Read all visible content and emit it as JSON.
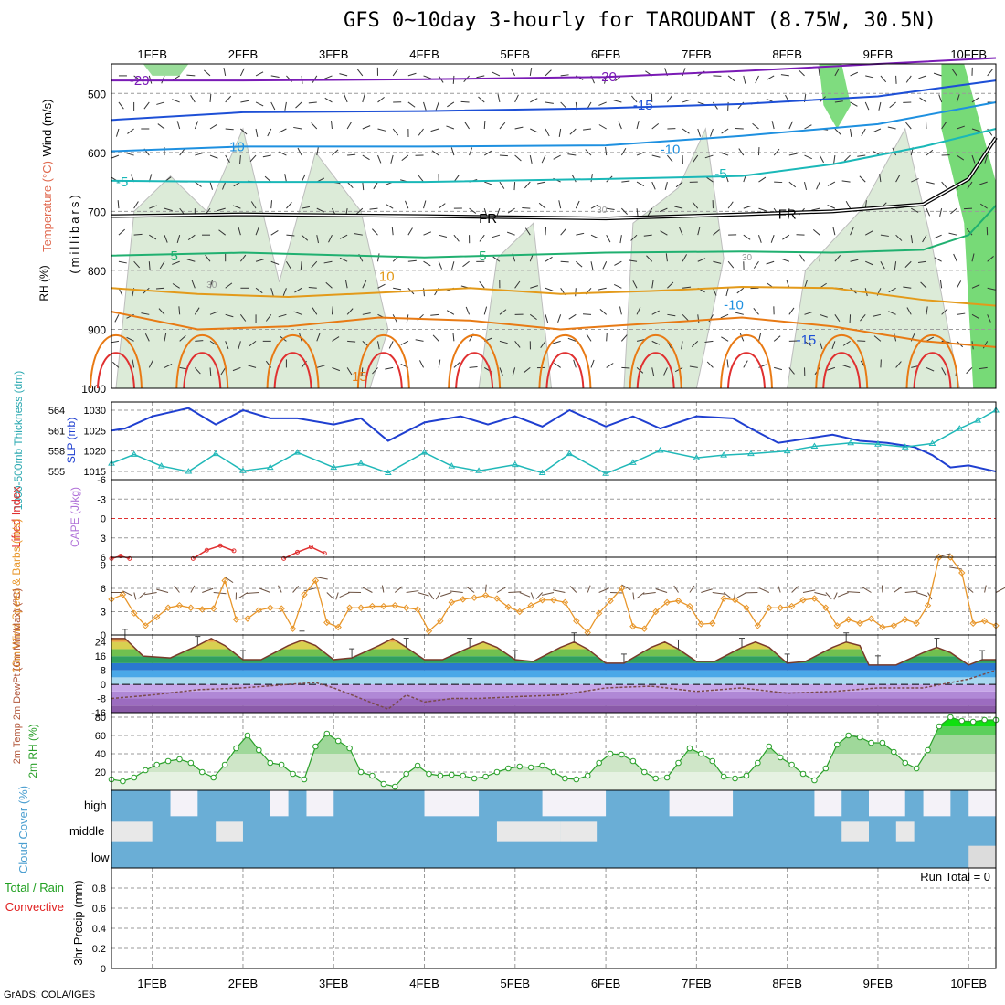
{
  "title": "GFS 0~10day 3-hourly for TAROUDANT (8.75W, 30.5N)",
  "credit": "GrADS: COLA/IGES",
  "run_total_text": "Run Total = 0",
  "colors": {
    "rh_green": "#5fd35f",
    "t_neg20": "#7a1bb5",
    "t_neg15": "#1d4fd6",
    "t_neg10": "#1e90e0",
    "t_neg5": "#1ab8b8",
    "t_pos5": "#20b070",
    "t_pos10": "#e39a1a",
    "t_pos15": "#e87a14",
    "slp": "#1f3fd0",
    "thickness": "#20b8b8",
    "wind10m": "#e8962a",
    "cloud_blue": "#6aaed6",
    "rh2m": "#2aa02a"
  },
  "chart_data": [
    {
      "type": "line",
      "panel": "vertical-profile",
      "ylabel_parts": [
        "RH (%)",
        "Temperature (°C)",
        "Wind (m/s)",
        "(millibars)"
      ],
      "ylim": [
        1000,
        450
      ],
      "y_ticks": [
        "500",
        "600",
        "700",
        "800",
        "900",
        "1000"
      ],
      "x_ticks": [
        "1FEB",
        "2FEB",
        "3FEB",
        "4FEB",
        "5FEB",
        "6FEB",
        "7FEB",
        "8FEB",
        "9FEB",
        "10FEB"
      ],
      "contour_labels": [
        "-20",
        "-20",
        "-15",
        "-10",
        "-10",
        "-5",
        "-5",
        "FR",
        "FR",
        "5",
        "5",
        "10",
        "-10",
        "-15",
        "15",
        "30",
        "30",
        "30"
      ],
      "series": [
        {
          "name": "-20",
          "x": [
            0.55,
            2,
            4,
            6,
            7.5,
            9,
            10.3
          ],
          "y": [
            478,
            478,
            476,
            472,
            462,
            450,
            440
          ]
        },
        {
          "name": "-15",
          "x": [
            0.55,
            2,
            4,
            6,
            7.5,
            9,
            10.3
          ],
          "y": [
            545,
            532,
            530,
            525,
            518,
            505,
            478
          ]
        },
        {
          "name": "-10",
          "x": [
            0.55,
            2,
            4,
            6,
            7.5,
            9,
            10.3
          ],
          "y": [
            598,
            590,
            590,
            588,
            572,
            552,
            515
          ]
        },
        {
          "name": "-5",
          "x": [
            0.55,
            2,
            4,
            6,
            7.5,
            8.5,
            9.5,
            10.3
          ],
          "y": [
            648,
            650,
            650,
            645,
            640,
            620,
            590,
            560
          ]
        },
        {
          "name": "FR",
          "x": [
            0.55,
            2,
            4,
            6,
            7.5,
            8.5,
            9.5,
            10.0,
            10.3
          ],
          "y": [
            708,
            705,
            708,
            712,
            705,
            700,
            688,
            645,
            575
          ]
        },
        {
          "name": "5",
          "x": [
            0.55,
            2,
            4,
            6,
            7.5,
            8.5,
            9.5,
            10.0,
            10.3
          ],
          "y": [
            775,
            770,
            778,
            770,
            768,
            770,
            765,
            740,
            690
          ]
        },
        {
          "name": "10",
          "x": [
            0.55,
            1.5,
            2.5,
            3.5,
            4.5,
            5.5,
            6.5,
            7.5,
            8.5,
            9.5,
            10.3
          ],
          "y": [
            830,
            840,
            845,
            838,
            830,
            840,
            835,
            828,
            830,
            850,
            860
          ]
        },
        {
          "name": "15",
          "x": [
            0.55,
            1.5,
            2.5,
            3.5,
            4.5,
            5.5,
            6.5,
            7.5,
            8.5,
            9.5,
            10.3
          ],
          "y": [
            870,
            900,
            895,
            880,
            885,
            900,
            890,
            880,
            895,
            920,
            930
          ]
        }
      ]
    },
    {
      "type": "line",
      "panel": "slp-thickness",
      "ylabel": "SLP (mb)",
      "ylabel2": "1000-500mb Thickness (dm)",
      "ylim": [
        1013,
        1032
      ],
      "y_ticks": [
        "1015",
        "1020",
        "1025",
        "1030"
      ],
      "y2_ticks": [
        "555",
        "558",
        "561",
        "564"
      ],
      "series": [
        {
          "name": "SLP",
          "x": [
            0.55,
            0.7,
            1.0,
            1.4,
            1.7,
            2.0,
            2.3,
            2.6,
            3.0,
            3.3,
            3.6,
            4.0,
            4.4,
            4.7,
            5.0,
            5.3,
            5.6,
            6.0,
            6.3,
            6.6,
            7.0,
            7.4,
            7.6,
            7.9,
            8.2,
            8.5,
            8.8,
            9.1,
            9.4,
            9.6,
            9.8,
            10.0,
            10.3
          ],
          "y": [
            1025.0,
            1025.5,
            1028.5,
            1030.5,
            1026.5,
            1030.0,
            1028.0,
            1028.0,
            1026.5,
            1028.0,
            1022.5,
            1027.0,
            1028.5,
            1026.5,
            1028.5,
            1026.0,
            1030.0,
            1026.0,
            1028.5,
            1025.5,
            1028.5,
            1028.0,
            1025.5,
            1022.0,
            1023.0,
            1024.0,
            1022.5,
            1022.0,
            1021.0,
            1019.0,
            1016.0,
            1016.5,
            1015.0
          ]
        },
        {
          "name": "Thickness",
          "x": [
            0.55,
            0.8,
            1.1,
            1.4,
            1.7,
            2.0,
            2.3,
            2.6,
            3.0,
            3.3,
            3.6,
            4.0,
            4.3,
            4.6,
            5.0,
            5.3,
            5.6,
            6.0,
            6.3,
            6.6,
            7.0,
            7.3,
            7.6,
            8.0,
            8.3,
            8.7,
            9.0,
            9.3,
            9.6,
            9.9,
            10.1,
            10.3
          ],
          "y": [
            556.2,
            557.5,
            555.8,
            555.0,
            557.6,
            555.1,
            555.6,
            557.8,
            555.6,
            556.2,
            554.8,
            557.8,
            555.8,
            555.1,
            556.0,
            554.8,
            557.6,
            554.7,
            556.3,
            558.1,
            557.0,
            557.4,
            557.6,
            558.0,
            558.7,
            559.2,
            559.0,
            558.6,
            559.1,
            561.3,
            562.5,
            564.0
          ]
        }
      ]
    },
    {
      "type": "line",
      "panel": "cape-lifted-index",
      "ylabel": "Lifted Index",
      "ylabel2": "CAPE (J/kg)",
      "ylim": [
        6,
        -6
      ],
      "y_ticks": [
        "-6",
        "-3",
        "0",
        "3",
        "6"
      ],
      "series": [
        {
          "name": "Lifted Index",
          "x": [
            0.55,
            0.65,
            0.75,
            1.45,
            1.6,
            1.75,
            1.9,
            2.45,
            2.6,
            2.75,
            2.9
          ],
          "y": [
            6.2,
            5.8,
            6.2,
            6.2,
            4.9,
            4.2,
            5.0,
            6.2,
            5.2,
            4.4,
            5.4
          ]
        }
      ]
    },
    {
      "type": "line",
      "panel": "wind-10m",
      "ylabel": "10m Wind Speed & Barbs (m/s)",
      "ylim": [
        0,
        10
      ],
      "y_ticks": [
        "0",
        "3",
        "6",
        "9"
      ],
      "series": [
        {
          "name": "10m Wind Speed",
          "x": [
            0.55,
            0.675,
            0.8,
            0.925,
            1.05,
            1.175,
            1.3,
            1.425,
            1.55,
            1.675,
            1.8,
            1.925,
            2.05,
            2.175,
            2.3,
            2.425,
            2.55,
            2.675,
            2.8,
            2.925,
            3.05,
            3.175,
            3.3,
            3.425,
            3.55,
            3.675,
            3.8,
            3.925,
            4.05,
            4.175,
            4.3,
            4.425,
            4.55,
            4.675,
            4.8,
            4.925,
            5.05,
            5.175,
            5.3,
            5.425,
            5.55,
            5.675,
            5.8,
            5.925,
            6.05,
            6.175,
            6.3,
            6.425,
            6.55,
            6.675,
            6.8,
            6.925,
            7.05,
            7.175,
            7.3,
            7.425,
            7.55,
            7.675,
            7.8,
            7.925,
            8.05,
            8.175,
            8.3,
            8.425,
            8.55,
            8.675,
            8.8,
            8.925,
            9.05,
            9.175,
            9.3,
            9.425,
            9.55,
            9.675,
            9.8,
            9.925,
            10.05,
            10.175,
            10.3
          ],
          "y": [
            4.6,
            5.2,
            2.8,
            1.2,
            2.3,
            3.5,
            3.8,
            3.5,
            3.3,
            3.4,
            7.0,
            2.0,
            2.1,
            3.2,
            3.5,
            3.4,
            0.8,
            5.2,
            7.0,
            1.6,
            1.0,
            3.5,
            3.5,
            3.7,
            3.7,
            3.8,
            3.5,
            3.3,
            0.5,
            1.8,
            4.2,
            4.6,
            4.8,
            5.1,
            4.7,
            3.6,
            3.0,
            3.8,
            4.5,
            4.5,
            4.2,
            1.8,
            0.3,
            2.8,
            4.4,
            6.0,
            1.1,
            0.8,
            3.0,
            4.2,
            4.4,
            3.7,
            1.4,
            1.5,
            4.7,
            4.5,
            3.5,
            1.2,
            3.5,
            3.5,
            3.7,
            4.5,
            4.7,
            3.5,
            1.2,
            2.0,
            1.5,
            2.1,
            1.0,
            1.2,
            2.0,
            1.5,
            3.8,
            10.0,
            10.0,
            8.0,
            1.5,
            1.8,
            1.2
          ]
        }
      ]
    },
    {
      "type": "area",
      "panel": "temp-2m",
      "ylabel": "2m Temp 2m DewPt (6hr Min/Max) (°C)",
      "ylim": [
        -16,
        28
      ],
      "y_ticks": [
        "-16",
        "-8",
        "0",
        "8",
        "16",
        "24"
      ],
      "series": [
        {
          "name": "2m Temp",
          "x": [
            0.55,
            0.7,
            0.9,
            1.2,
            1.5,
            1.65,
            1.8,
            2.0,
            2.2,
            2.5,
            2.65,
            2.8,
            3.0,
            3.2,
            3.5,
            3.65,
            3.8,
            4.0,
            4.2,
            4.5,
            4.65,
            4.8,
            5.0,
            5.2,
            5.5,
            5.65,
            5.8,
            6.0,
            6.2,
            6.5,
            6.65,
            6.8,
            7.0,
            7.2,
            7.5,
            7.65,
            7.8,
            8.0,
            8.2,
            8.5,
            8.65,
            8.8,
            8.9,
            9.0,
            9.2,
            9.5,
            9.65,
            9.8,
            10.0,
            10.15,
            10.3
          ],
          "y": [
            26,
            26,
            16,
            15,
            22,
            26,
            22,
            14,
            14,
            22,
            25,
            22,
            14,
            15,
            22,
            26,
            21,
            14,
            14,
            21,
            24,
            21,
            14,
            13,
            21,
            24,
            20,
            12,
            12,
            21,
            24,
            20,
            13,
            13,
            21,
            24,
            21,
            12,
            13,
            21,
            24,
            22,
            11,
            11,
            11,
            18,
            21,
            18,
            11,
            14,
            14
          ]
        },
        {
          "name": "2m DewPt",
          "x": [
            0.55,
            1.0,
            1.5,
            2.0,
            2.5,
            2.8,
            3.0,
            3.3,
            3.6,
            3.8,
            4.0,
            4.3,
            4.6,
            5.0,
            5.5,
            6.0,
            6.5,
            7.0,
            7.5,
            8.0,
            8.5,
            9.0,
            9.5,
            10.0,
            10.3
          ],
          "y": [
            -8,
            -6,
            -3,
            -2,
            0,
            1,
            -2,
            -8,
            -14,
            -6,
            -10,
            -8,
            -8,
            -7,
            -6,
            -2,
            -1,
            -4,
            -2,
            -5,
            -4,
            -2,
            -2,
            3,
            8
          ]
        }
      ]
    },
    {
      "type": "area",
      "panel": "rh-2m",
      "ylabel": "2m RH (%)",
      "ylim": [
        0,
        85
      ],
      "y_ticks": [
        "20",
        "40",
        "60",
        "80"
      ],
      "series": [
        {
          "name": "2m RH",
          "x": [
            0.55,
            0.675,
            0.8,
            0.925,
            1.05,
            1.175,
            1.3,
            1.425,
            1.55,
            1.675,
            1.8,
            1.925,
            2.05,
            2.175,
            2.3,
            2.425,
            2.55,
            2.675,
            2.8,
            2.925,
            3.05,
            3.175,
            3.3,
            3.425,
            3.55,
            3.675,
            3.8,
            3.925,
            4.05,
            4.175,
            4.3,
            4.425,
            4.55,
            4.675,
            4.8,
            4.925,
            5.05,
            5.175,
            5.3,
            5.425,
            5.55,
            5.675,
            5.8,
            5.925,
            6.05,
            6.175,
            6.3,
            6.425,
            6.55,
            6.675,
            6.8,
            6.925,
            7.05,
            7.175,
            7.3,
            7.425,
            7.55,
            7.675,
            7.8,
            7.925,
            8.05,
            8.175,
            8.3,
            8.425,
            8.55,
            8.675,
            8.8,
            8.925,
            9.05,
            9.175,
            9.3,
            9.425,
            9.55,
            9.675,
            9.8,
            9.925,
            10.05,
            10.175,
            10.3
          ],
          "y": [
            12,
            10,
            14,
            22,
            28,
            32,
            34,
            30,
            20,
            14,
            28,
            46,
            60,
            44,
            30,
            28,
            18,
            12,
            48,
            62,
            54,
            46,
            20,
            16,
            7,
            4,
            18,
            27,
            18,
            16,
            17,
            16,
            13,
            15,
            20,
            24,
            26,
            25,
            27,
            20,
            13,
            12,
            16,
            30,
            40,
            39,
            32,
            20,
            13,
            14,
            30,
            46,
            40,
            32,
            15,
            13,
            16,
            30,
            48,
            36,
            28,
            18,
            11,
            24,
            50,
            60,
            58,
            52,
            52,
            42,
            30,
            24,
            44,
            70,
            80,
            76,
            75,
            77,
            77
          ]
        }
      ]
    },
    {
      "type": "heatmap",
      "panel": "cloud-cover",
      "ylabel": "Cloud Cover (%)",
      "rows": [
        "high",
        "middle",
        "low"
      ]
    },
    {
      "type": "bar",
      "panel": "precip",
      "ylabel": "3hr Precip (mm)",
      "ylabel2_total": "Total / Rain",
      "ylabel2_conv": "Convective",
      "ylim": [
        0,
        1
      ],
      "y_ticks": [
        "0",
        "0.2",
        "0.4",
        "0.6",
        "0.8"
      ],
      "x_ticks": [
        "1FEB",
        "2FEB",
        "3FEB",
        "4FEB",
        "5FEB",
        "6FEB",
        "7FEB",
        "8FEB",
        "9FEB",
        "10FEB"
      ],
      "values": []
    }
  ]
}
